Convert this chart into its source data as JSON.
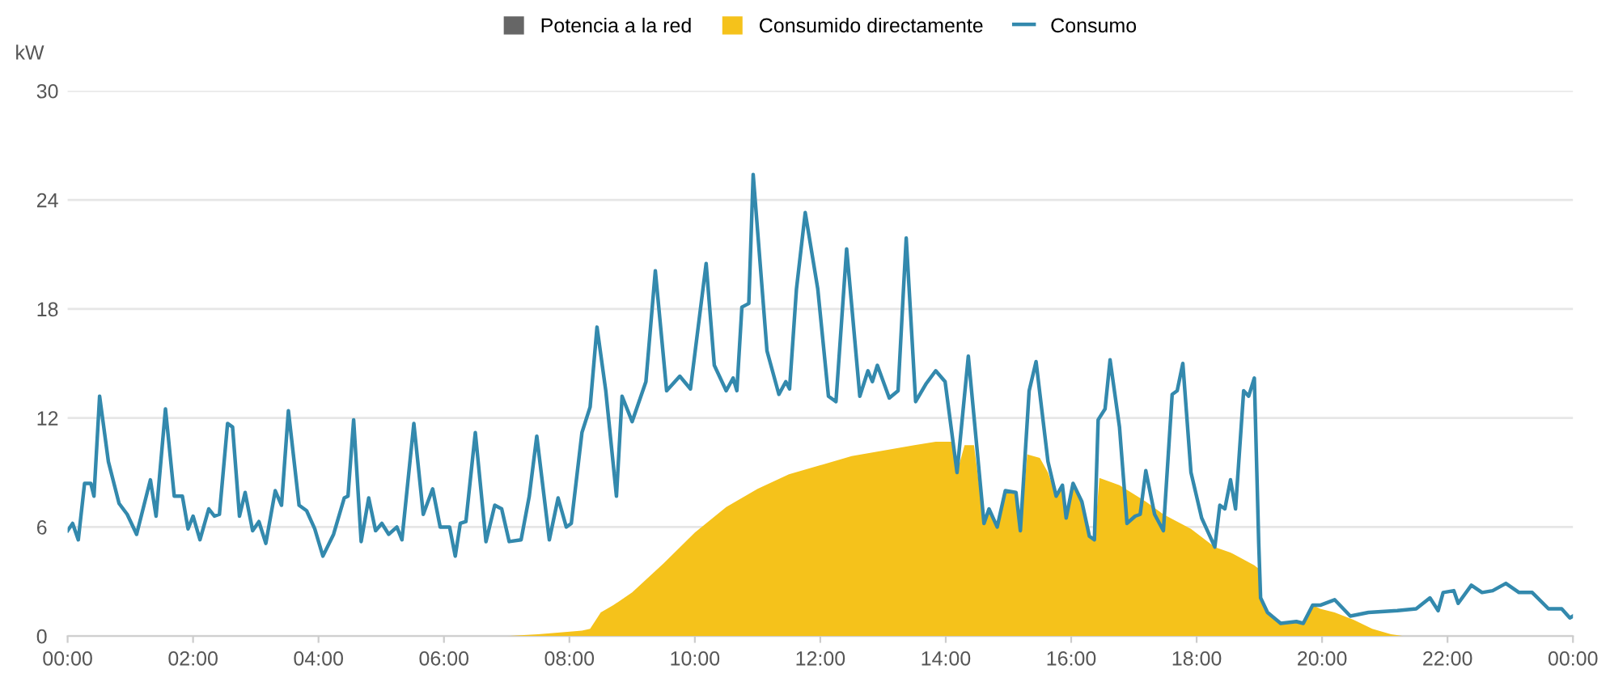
{
  "chart_data": {
    "type": "line",
    "ylabel": "kW",
    "xlim": [
      0,
      24
    ],
    "xticks": [
      {
        "value": 0,
        "label": "00:00"
      },
      {
        "value": 2,
        "label": "02:00"
      },
      {
        "value": 4,
        "label": "04:00"
      },
      {
        "value": 6,
        "label": "06:00"
      },
      {
        "value": 8,
        "label": "08:00"
      },
      {
        "value": 10,
        "label": "10:00"
      },
      {
        "value": 12,
        "label": "12:00"
      },
      {
        "value": 14,
        "label": "14:00"
      },
      {
        "value": 16,
        "label": "16:00"
      },
      {
        "value": 18,
        "label": "18:00"
      },
      {
        "value": 20,
        "label": "20:00"
      },
      {
        "value": 22,
        "label": "22:00"
      },
      {
        "value": 24,
        "label": "00:00"
      }
    ],
    "ylim": [
      0,
      30
    ],
    "yticks": [
      0,
      6,
      12,
      18,
      24,
      30
    ],
    "grid": "y",
    "legend": "top",
    "series": [
      {
        "name": "Potencia a la red",
        "type": "area",
        "color": "#666666"
      },
      {
        "name": "Consumido directamente",
        "type": "area",
        "color": "#f5c21b",
        "x": [
          0,
          7.0,
          7.5,
          8.2,
          8.33,
          8.5,
          8.7,
          9.0,
          9.5,
          10.0,
          10.5,
          11.0,
          11.5,
          12.0,
          12.5,
          13.0,
          13.5,
          13.84,
          14.1,
          14.18,
          14.3,
          14.45,
          14.61,
          14.69,
          14.82,
          14.95,
          15.12,
          15.19,
          15.3,
          15.5,
          15.63,
          15.76,
          15.86,
          15.92,
          16.03,
          16.17,
          16.29,
          16.37,
          16.45,
          16.77,
          17.19,
          17.47,
          17.91,
          18.29,
          18.54,
          18.92,
          18.99,
          19.02,
          19.13,
          19.34,
          19.59,
          19.7,
          19.85,
          19.97,
          20.2,
          20.5,
          20.8,
          21.1,
          21.3,
          24
        ],
        "values": [
          0,
          0,
          0.1,
          0.3,
          0.4,
          1.3,
          1.7,
          2.4,
          4.0,
          5.7,
          7.1,
          8.1,
          8.9,
          9.4,
          9.9,
          10.2,
          10.5,
          10.7,
          10.7,
          9.0,
          10.5,
          10.5,
          6.2,
          7.0,
          6.0,
          8.0,
          7.9,
          5.8,
          10.0,
          9.8,
          9.0,
          7.7,
          8.3,
          6.5,
          8.4,
          7.4,
          5.5,
          5.3,
          8.7,
          8.3,
          7.4,
          6.7,
          5.9,
          4.9,
          4.6,
          3.9,
          3.7,
          2.1,
          1.3,
          0.7,
          0.8,
          0.7,
          1.7,
          1.5,
          1.3,
          0.9,
          0.4,
          0.1,
          0,
          0
        ]
      },
      {
        "name": "Consumo",
        "color": "#3389ad",
        "x": [
          0,
          0.08,
          0.17,
          0.27,
          0.37,
          0.42,
          0.51,
          0.65,
          0.82,
          0.95,
          1.1,
          1.32,
          1.41,
          1.56,
          1.7,
          1.83,
          1.92,
          2.0,
          2.11,
          2.25,
          2.34,
          2.42,
          2.55,
          2.63,
          2.74,
          2.83,
          2.95,
          3.05,
          3.16,
          3.31,
          3.41,
          3.52,
          3.69,
          3.81,
          3.94,
          4.07,
          4.24,
          4.41,
          4.47,
          4.56,
          4.68,
          4.8,
          4.91,
          5.01,
          5.12,
          5.25,
          5.33,
          5.52,
          5.67,
          5.82,
          5.94,
          6.09,
          6.18,
          6.26,
          6.35,
          6.5,
          6.67,
          6.81,
          6.92,
          7.04,
          7.23,
          7.36,
          7.48,
          7.68,
          7.82,
          7.95,
          8.03,
          8.2,
          8.33,
          8.44,
          8.58,
          8.75,
          8.84,
          9.0,
          9.22,
          9.37,
          9.55,
          9.76,
          9.93,
          10.18,
          10.31,
          10.5,
          10.61,
          10.67,
          10.75,
          10.86,
          10.93,
          11.15,
          11.34,
          11.45,
          11.51,
          11.62,
          11.76,
          11.96,
          12.13,
          12.25,
          12.42,
          12.63,
          12.76,
          12.83,
          12.91,
          13.1,
          13.24,
          13.37,
          13.52,
          13.69,
          13.84,
          13.99,
          14.18,
          14.36,
          14.61,
          14.69,
          14.82,
          14.95,
          15.12,
          15.19,
          15.33,
          15.44,
          15.63,
          15.76,
          15.86,
          15.92,
          16.03,
          16.17,
          16.29,
          16.37,
          16.43,
          16.54,
          16.62,
          16.77,
          16.89,
          17.02,
          17.1,
          17.19,
          17.33,
          17.47,
          17.61,
          17.69,
          17.78,
          17.91,
          18.08,
          18.29,
          18.37,
          18.45,
          18.54,
          18.62,
          18.75,
          18.83,
          18.92,
          18.99,
          19.02,
          19.13,
          19.34,
          19.59,
          19.7,
          19.85,
          19.97,
          20.2,
          20.45,
          20.74,
          21.2,
          21.5,
          21.72,
          21.85,
          21.93,
          22.1,
          22.17,
          22.38,
          22.55,
          22.72,
          22.93,
          23.14,
          23.35,
          23.61,
          23.82,
          23.95,
          24.0
        ],
        "values": [
          5.8,
          6.2,
          5.3,
          8.4,
          8.4,
          7.7,
          13.2,
          9.6,
          7.3,
          6.7,
          5.6,
          8.6,
          6.6,
          12.5,
          7.7,
          7.7,
          5.9,
          6.6,
          5.3,
          7.0,
          6.6,
          6.7,
          11.7,
          11.5,
          6.6,
          7.9,
          5.8,
          6.3,
          5.1,
          8.0,
          7.2,
          12.4,
          7.2,
          6.9,
          5.9,
          4.4,
          5.6,
          7.6,
          7.7,
          11.9,
          5.2,
          7.6,
          5.8,
          6.2,
          5.6,
          6.0,
          5.3,
          11.7,
          6.7,
          8.1,
          6.0,
          6.0,
          4.4,
          6.2,
          6.3,
          11.2,
          5.2,
          7.2,
          7.0,
          5.2,
          5.3,
          7.7,
          11.0,
          5.3,
          7.6,
          6.0,
          6.2,
          11.2,
          12.6,
          17.0,
          13.5,
          7.7,
          13.2,
          11.8,
          14.0,
          20.1,
          13.5,
          14.3,
          13.6,
          20.5,
          14.9,
          13.5,
          14.2,
          13.5,
          18.1,
          18.3,
          25.4,
          15.7,
          13.3,
          14.0,
          13.6,
          19.1,
          23.3,
          19.1,
          13.2,
          12.9,
          21.3,
          13.2,
          14.6,
          14.0,
          14.9,
          13.1,
          13.5,
          21.9,
          12.9,
          13.9,
          14.6,
          14.0,
          9.0,
          15.4,
          6.2,
          7.0,
          6.0,
          8.0,
          7.9,
          5.8,
          13.5,
          15.1,
          9.6,
          7.7,
          8.3,
          6.5,
          8.4,
          7.4,
          5.5,
          5.3,
          11.9,
          12.5,
          15.2,
          11.5,
          6.2,
          6.6,
          6.7,
          9.1,
          6.7,
          5.8,
          13.3,
          13.5,
          15.0,
          9.0,
          6.5,
          4.9,
          7.2,
          7.0,
          8.6,
          7.0,
          13.5,
          13.2,
          14.2,
          5.1,
          2.1,
          1.3,
          0.7,
          0.8,
          0.7,
          1.7,
          1.7,
          2.0,
          1.1,
          1.3,
          1.4,
          1.5,
          2.1,
          1.4,
          2.4,
          2.5,
          1.8,
          2.8,
          2.4,
          2.5,
          2.9,
          2.4,
          2.4,
          1.5,
          1.5,
          1.0,
          1.1
        ]
      }
    ]
  }
}
